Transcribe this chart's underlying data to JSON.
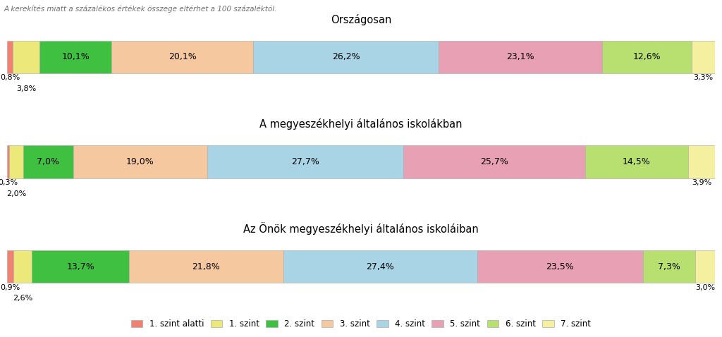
{
  "title_note": "A kerekítés miatt a százalékos értékek összege eltérhet a 100 százaléktól.",
  "rows": [
    {
      "label": "Országosan",
      "values": [
        0.8,
        3.8,
        10.1,
        20.1,
        26.2,
        23.1,
        12.6,
        3.3
      ]
    },
    {
      "label": "A megyeszékhelyi általános iskolákban",
      "values": [
        0.3,
        2.0,
        7.0,
        19.0,
        27.7,
        25.7,
        14.5,
        3.9
      ]
    },
    {
      "label": "Az Önök megyeszékhelyi általános iskoláiban",
      "values": [
        0.9,
        2.6,
        13.7,
        21.8,
        27.4,
        23.5,
        7.3,
        3.0
      ]
    }
  ],
  "colors": [
    "#F08070",
    "#EDE87A",
    "#40C040",
    "#F5C8A0",
    "#A8D4E6",
    "#E8A0B4",
    "#B8E070",
    "#F5F0A0"
  ],
  "legend_labels": [
    "1. szint alatti",
    "1. szint",
    "2. szint",
    "3. szint",
    "4. szint",
    "5. szint",
    "6. szint",
    "7. szint"
  ],
  "bg_color": "#FFFFFF",
  "bar_height": 0.6,
  "title_fontsize": 10.5,
  "note_fontsize": 7.5,
  "label_fontsize": 9,
  "small_label_fontsize": 8,
  "small_threshold": 5.0
}
